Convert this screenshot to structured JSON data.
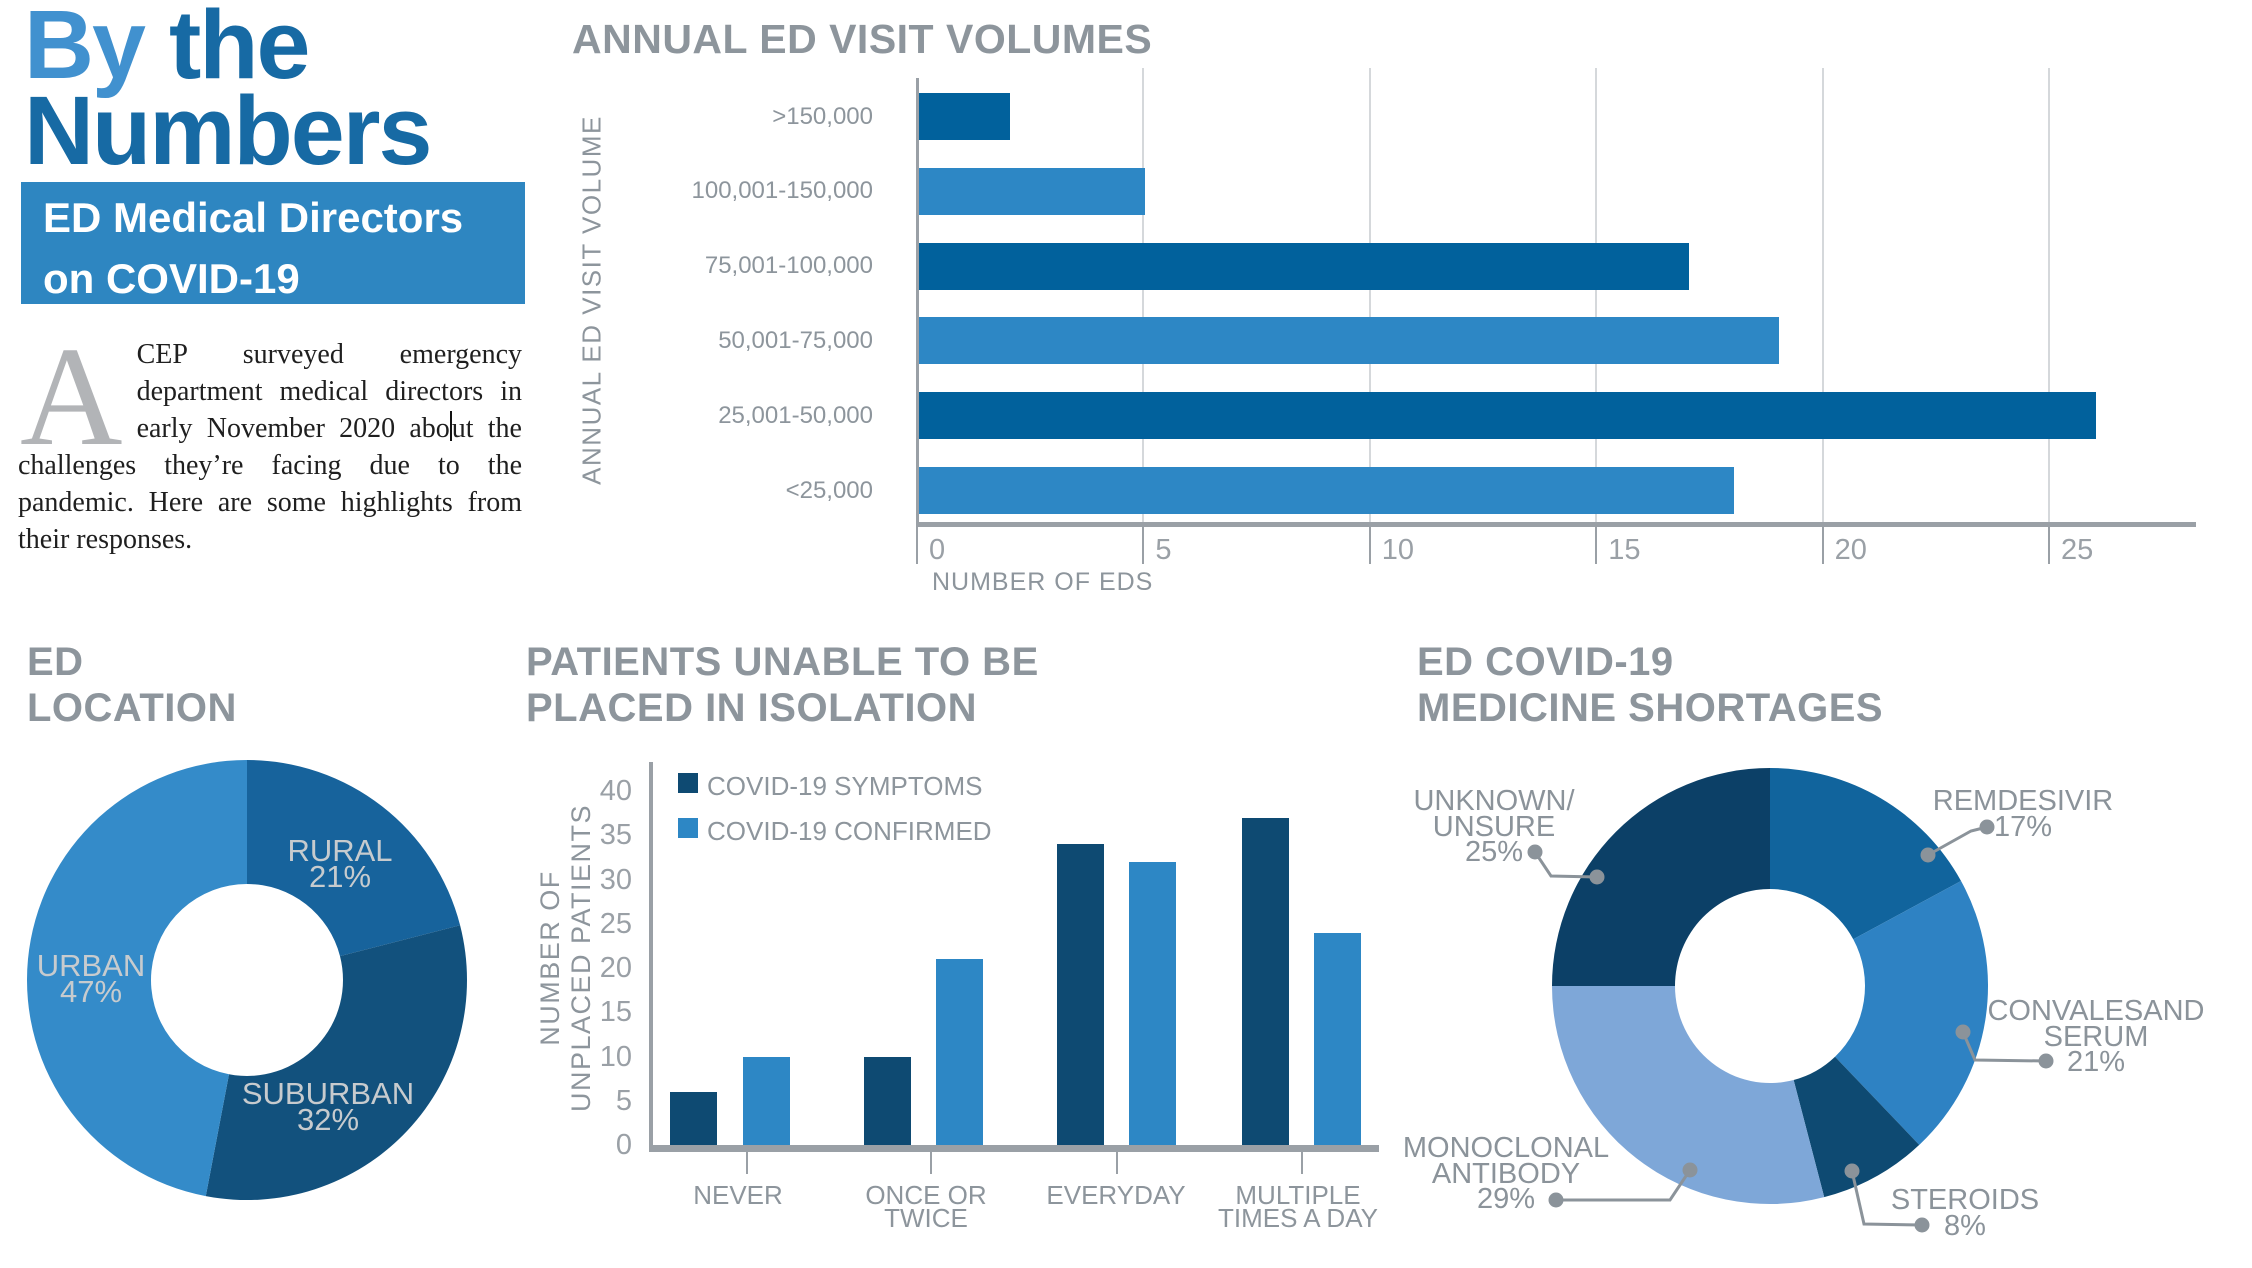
{
  "page": {
    "title_part_light": "By ",
    "title_part_dark": "the",
    "title_line2": "Numbers",
    "banner": {
      "line1": "ED Medical Directors",
      "line2": "on COVID-19"
    },
    "intro": {
      "dropcap": "A",
      "text_before_caret": "CEP surveyed emergency department medical directors in early November 2020 abo",
      "text_after_caret": "ut the challenges they’re facing due to the pandemic. Here are some highlights from their responses."
    }
  },
  "colors": {
    "title_light_blue": "#4191cf",
    "title_dark_blue": "#176aa4",
    "banner_blue": "#2e86c1",
    "bar_dark": "#01619c",
    "bar_light": "#2d87c5",
    "navy": "#0e4a72",
    "gray_title": "#8d959c",
    "gray_axis": "#9aa0a6",
    "gray_grid": "#d5d8db",
    "pie_label_gray": "#c7cbce",
    "leader_gray": "#8b939a"
  },
  "chart_data": [
    {
      "id": "ed_visit_volumes",
      "type": "bar",
      "orientation": "horizontal",
      "title": "ANNUAL ED VISIT VOLUMES",
      "xlabel": "NUMBER OF EDS",
      "ylabel": "ANNUAL ED VISIT VOLUME",
      "categories": [
        ">150,000",
        "100,001-150,000",
        "75,001-100,000",
        "50,001-75,000",
        "25,001-50,000",
        "<25,000"
      ],
      "values": [
        2,
        5,
        17,
        19,
        26,
        18
      ],
      "bar_colors": [
        "#01619c",
        "#2d87c5",
        "#01619c",
        "#2d87c5",
        "#01619c",
        "#2d87c5"
      ],
      "xlim": [
        0,
        28
      ],
      "xticks": [
        0,
        5,
        10,
        15,
        20,
        25
      ],
      "grid": true,
      "legend_position": "none"
    },
    {
      "id": "ed_location",
      "type": "pie",
      "donut": true,
      "title_lines": [
        "ED",
        "LOCATION"
      ],
      "start_angle_deg": 0,
      "direction": "clockwise",
      "slices": [
        {
          "label": "RURAL",
          "value": 21,
          "color": "#17639c"
        },
        {
          "label": "SUBURBAN",
          "value": 32,
          "color": "#12517d"
        },
        {
          "label": "URBAN",
          "value": 47,
          "color": "#348bc9"
        }
      ]
    },
    {
      "id": "patients_isolation",
      "type": "bar",
      "orientation": "vertical",
      "grouped": true,
      "title_lines": [
        "PATIENTS UNABLE TO BE",
        "PLACED IN ISOLATION"
      ],
      "ylabel_lines": [
        "NUMBER OF",
        "UNPLACED PATIENTS"
      ],
      "categories": [
        "NEVER",
        "ONCE OR TWICE",
        "EVERYDAY",
        "MULTIPLE TIMES A DAY"
      ],
      "category_label_lines": [
        [
          "NEVER"
        ],
        [
          "ONCE OR",
          "TWICE"
        ],
        [
          "EVERYDAY"
        ],
        [
          "MULTIPLE",
          "TIMES A DAY"
        ]
      ],
      "series": [
        {
          "name": "COVID-19 SYMPTOMS",
          "color": "#0e4a72",
          "values": [
            6,
            10,
            34,
            37
          ]
        },
        {
          "name": "COVID-19 CONFIRMED",
          "color": "#2d87c5",
          "values": [
            10,
            21,
            32,
            24
          ]
        }
      ],
      "ylim": [
        0,
        40
      ],
      "yticks": [
        0,
        5,
        10,
        15,
        20,
        25,
        30,
        35,
        40
      ],
      "grid": false,
      "legend_position": "top-left"
    },
    {
      "id": "medicine_shortages",
      "type": "pie",
      "donut": true,
      "title_lines": [
        "ED COVID-19",
        "MEDICINE SHORTAGES"
      ],
      "start_angle_deg": 0,
      "direction": "clockwise",
      "slices": [
        {
          "label": "REMDESIVIR",
          "label_lines": [
            "REMDESIVIR"
          ],
          "value": 17,
          "color": "#11649d"
        },
        {
          "label": "CONVALESAND SERUM",
          "label_lines": [
            "CONVALESAND",
            "SERUM"
          ],
          "value": 21,
          "color": "#2e82c3"
        },
        {
          "label": "STEROIDS",
          "label_lines": [
            "STEROIDS"
          ],
          "value": 8,
          "color": "#0e4a72"
        },
        {
          "label": "MONOCLONAL ANTIBODY",
          "label_lines": [
            "MONOCLONAL",
            "ANTIBODY"
          ],
          "value": 29,
          "color": "#7ea7d8"
        },
        {
          "label": "UNKNOWN/UNSURE",
          "label_lines": [
            "UNKNOWN/",
            "UNSURE"
          ],
          "value": 25,
          "color": "#0c4067"
        }
      ]
    }
  ]
}
